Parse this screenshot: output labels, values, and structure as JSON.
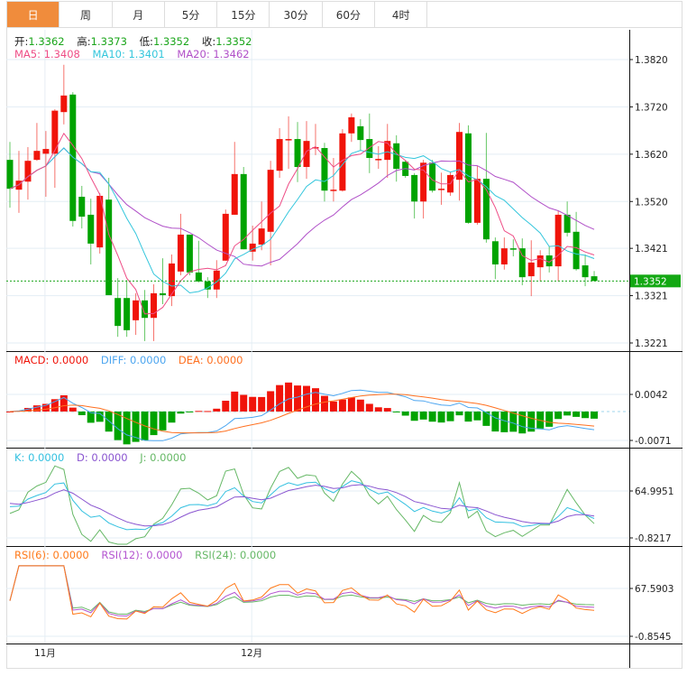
{
  "tabs": [
    "日",
    "周",
    "月",
    "5分",
    "15分",
    "30分",
    "60分",
    "4时"
  ],
  "active_tab": 0,
  "header": {
    "open_label": "开:",
    "open": "1.3362",
    "high_label": "高:",
    "high": "1.3373",
    "low_label": "低:",
    "low": "1.3352",
    "close_label": "收:",
    "close": "1.3352",
    "ma5": "MA5: 1.3408",
    "ma10": "MA10: 1.3401",
    "ma20": "MA20: 1.3462"
  },
  "macd_header": {
    "macd": "MACD: 0.0000",
    "diff": "DIFF: 0.0000",
    "dea": "DEA: 0.0000"
  },
  "kdj_header": {
    "k": "K: 0.0000",
    "d": "D: 0.0000",
    "j": "J: 0.0000"
  },
  "rsi_header": {
    "rsi6": "RSI(6): 0.0000",
    "rsi12": "RSI(12): 0.0000",
    "rsi24": "RSI(24): 0.0000"
  },
  "colors": {
    "up": "#f0140a",
    "down": "#00a300",
    "ma5": "#ee4d86",
    "ma10": "#33c6dc",
    "ma20": "#b050c8",
    "diff": "#4da6f0",
    "dea": "#ff7020",
    "k": "#33c0e0",
    "d": "#8a55d0",
    "j": "#66b866",
    "rsi6": "#ff7a1a",
    "rsi12": "#b455d0",
    "rsi24": "#66b866",
    "tab_active": "#f08c3c"
  },
  "chart_data": {
    "type": "candlestick",
    "price_ticks": [
      "1.3820",
      "1.3720",
      "1.3620",
      "1.3520",
      "1.3421",
      "1.3321",
      "1.3221"
    ],
    "ylim": [
      1.3221,
      1.382
    ],
    "last_price": "1.3352",
    "macd_ticks": [
      "0.0042",
      "-0.0071"
    ],
    "kdj_ticks": [
      "64.9951",
      "-0.8217"
    ],
    "rsi_ticks": [
      "67.5903",
      "-0.8545"
    ],
    "x_labels": [
      {
        "label": "11月",
        "index": 4
      },
      {
        "label": "12月",
        "index": 27
      }
    ],
    "ohlc": [
      [
        1.3608,
        1.3646,
        1.3507,
        1.3547
      ],
      [
        1.3545,
        1.3627,
        1.3496,
        1.3564
      ],
      [
        1.3562,
        1.3635,
        1.3524,
        1.3606
      ],
      [
        1.3608,
        1.3686,
        1.3606,
        1.3627
      ],
      [
        1.3621,
        1.3669,
        1.353,
        1.3631
      ],
      [
        1.3621,
        1.3715,
        1.3549,
        1.3712
      ],
      [
        1.3709,
        1.3809,
        1.3683,
        1.3744
      ],
      [
        1.3746,
        1.3751,
        1.3467,
        1.3479
      ],
      [
        1.353,
        1.3553,
        1.3463,
        1.3488
      ],
      [
        1.3492,
        1.3526,
        1.3387,
        1.3431
      ],
      [
        1.3423,
        1.3538,
        1.341,
        1.3532
      ],
      [
        1.3524,
        1.357,
        1.3322,
        1.3322
      ],
      [
        1.3316,
        1.3358,
        1.3234,
        1.3257
      ],
      [
        1.3316,
        1.3354,
        1.3234,
        1.3248
      ],
      [
        1.3269,
        1.3326,
        1.3238,
        1.3311
      ],
      [
        1.3311,
        1.3333,
        1.3225,
        1.3274
      ],
      [
        1.3274,
        1.3345,
        1.3225,
        1.3326
      ],
      [
        1.3326,
        1.34,
        1.3303,
        1.3322
      ],
      [
        1.332,
        1.3408,
        1.3299,
        1.3389
      ],
      [
        1.3372,
        1.3494,
        1.3364,
        1.345
      ],
      [
        1.345,
        1.345,
        1.3364,
        1.337
      ],
      [
        1.337,
        1.3437,
        1.3349,
        1.3351
      ],
      [
        1.3351,
        1.336,
        1.3316,
        1.3334
      ],
      [
        1.3334,
        1.3396,
        1.3316,
        1.3374
      ],
      [
        1.3395,
        1.3503,
        1.3395,
        1.3494
      ],
      [
        1.3492,
        1.3646,
        1.3492,
        1.3578
      ],
      [
        1.3578,
        1.3593,
        1.3419,
        1.3419
      ],
      [
        1.3414,
        1.3469,
        1.3395,
        1.3431
      ],
      [
        1.3429,
        1.352,
        1.3417,
        1.3463
      ],
      [
        1.3456,
        1.3606,
        1.3385,
        1.3587
      ],
      [
        1.3585,
        1.3675,
        1.357,
        1.3652
      ],
      [
        1.365,
        1.37,
        1.3589,
        1.3652
      ],
      [
        1.3652,
        1.3688,
        1.3561,
        1.3593
      ],
      [
        1.3593,
        1.369,
        1.3568,
        1.3648
      ],
      [
        1.3633,
        1.3684,
        1.3618,
        1.3635
      ],
      [
        1.3633,
        1.3644,
        1.352,
        1.3543
      ],
      [
        1.3543,
        1.3612,
        1.352,
        1.3545
      ],
      [
        1.3543,
        1.3673,
        1.3541,
        1.3664
      ],
      [
        1.3664,
        1.3706,
        1.3646,
        1.3698
      ],
      [
        1.3679,
        1.3694,
        1.3627,
        1.365
      ],
      [
        1.3652,
        1.3706,
        1.358,
        1.3612
      ],
      [
        1.3608,
        1.3637,
        1.3589,
        1.361
      ],
      [
        1.3608,
        1.3684,
        1.357,
        1.3648
      ],
      [
        1.3643,
        1.366,
        1.3562,
        1.3589
      ],
      [
        1.3604,
        1.3608,
        1.357,
        1.3574
      ],
      [
        1.3576,
        1.358,
        1.3484,
        1.352
      ],
      [
        1.352,
        1.3608,
        1.3484,
        1.3602
      ],
      [
        1.3602,
        1.3608,
        1.3539,
        1.3543
      ],
      [
        1.3545,
        1.3581,
        1.3513,
        1.3547
      ],
      [
        1.3539,
        1.3583,
        1.3532,
        1.3576
      ],
      [
        1.3566,
        1.3686,
        1.3522,
        1.3667
      ],
      [
        1.3664,
        1.3681,
        1.3473,
        1.3475
      ],
      [
        1.3475,
        1.3595,
        1.3471,
        1.3568
      ],
      [
        1.3568,
        1.3665,
        1.3433,
        1.344
      ],
      [
        1.3436,
        1.3444,
        1.3356,
        1.3387
      ],
      [
        1.3387,
        1.3444,
        1.3376,
        1.3421
      ],
      [
        1.3421,
        1.344,
        1.3404,
        1.3419
      ],
      [
        1.3421,
        1.3442,
        1.3343,
        1.336
      ],
      [
        1.3362,
        1.3438,
        1.332,
        1.3391
      ],
      [
        1.3381,
        1.3417,
        1.3351,
        1.3406
      ],
      [
        1.3406,
        1.3425,
        1.337,
        1.3383
      ],
      [
        1.3383,
        1.3501,
        1.3351,
        1.3492
      ],
      [
        1.3492,
        1.352,
        1.3446,
        1.3454
      ],
      [
        1.3456,
        1.3498,
        1.3374,
        1.3377
      ],
      [
        1.3385,
        1.3408,
        1.3341,
        1.336
      ],
      [
        1.3362,
        1.3373,
        1.3352,
        1.3352
      ]
    ]
  }
}
